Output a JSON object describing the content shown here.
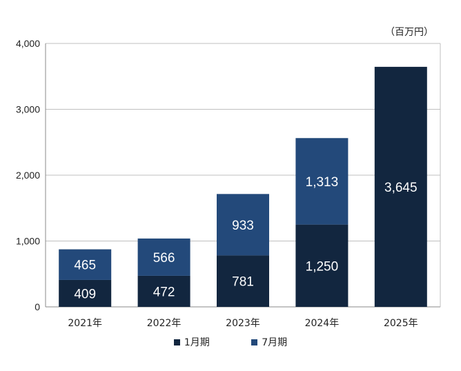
{
  "colors": {
    "series1": "#12263f",
    "series2": "#23497a",
    "axis": "#888888",
    "grid": "#bfbfbf",
    "text": "#222222",
    "label": "#ffffff"
  },
  "unit_label": "（百万円）",
  "chart_data": {
    "type": "bar",
    "stacked": true,
    "categories": [
      "2021年",
      "2022年",
      "2023年",
      "2024年",
      "2025年"
    ],
    "series": [
      {
        "name": "1月期",
        "values": [
          409,
          472,
          781,
          1250,
          3645
        ],
        "labels": [
          "409",
          "472",
          "781",
          "1,250",
          "3,645"
        ]
      },
      {
        "name": "7月期",
        "values": [
          465,
          566,
          933,
          1313,
          null
        ],
        "labels": [
          "465",
          "566",
          "933",
          "1,313",
          ""
        ]
      }
    ],
    "yticks": [
      "0",
      "1,000",
      "2,000",
      "3,000",
      "4,000"
    ],
    "ylim": [
      0,
      4000
    ],
    "grid": true,
    "legend_position": "bottom"
  }
}
